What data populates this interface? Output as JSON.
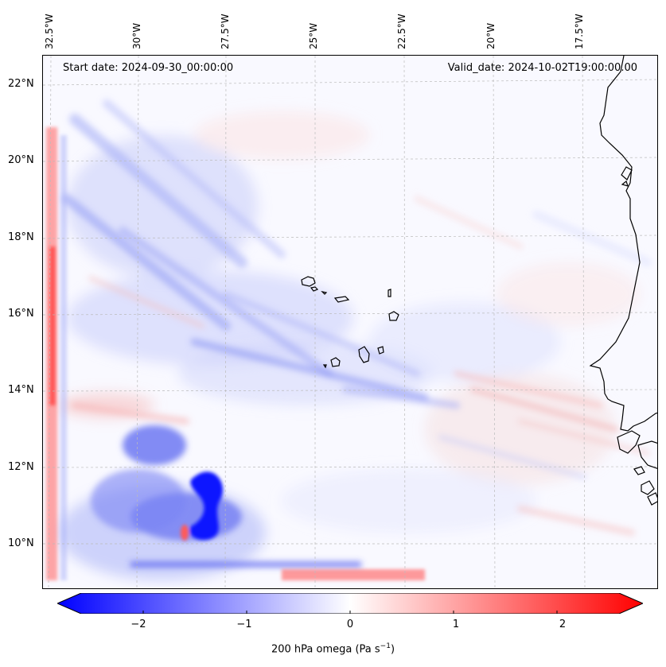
{
  "map": {
    "start_date": "Start date: 2024-09-30_00:00:00",
    "valid_date": "Valid_date: 2024-10-02T19:00:00.00",
    "lon_labels": [
      "32.5°W",
      "30°W",
      "27.5°W",
      "25°W",
      "22.5°W",
      "20°W",
      "17.5°W"
    ],
    "lat_labels": [
      "22°N",
      "20°N",
      "18°N",
      "16°N",
      "14°N",
      "12°N",
      "10°N"
    ],
    "features": [
      "Cape Verde islands",
      "West African coastline"
    ]
  },
  "colorbar": {
    "label": "200 hPa omega (Pa s",
    "label_exp": "−1",
    "ticks": [
      "−2",
      "−1",
      "0",
      "1",
      "2"
    ],
    "tick_values": [
      -2,
      -1,
      0,
      1,
      2
    ],
    "range": [
      -2.6,
      2.6
    ],
    "negative_color": "#0000ff",
    "zero_color": "#ffffff",
    "positive_color": "#ff0000"
  }
}
